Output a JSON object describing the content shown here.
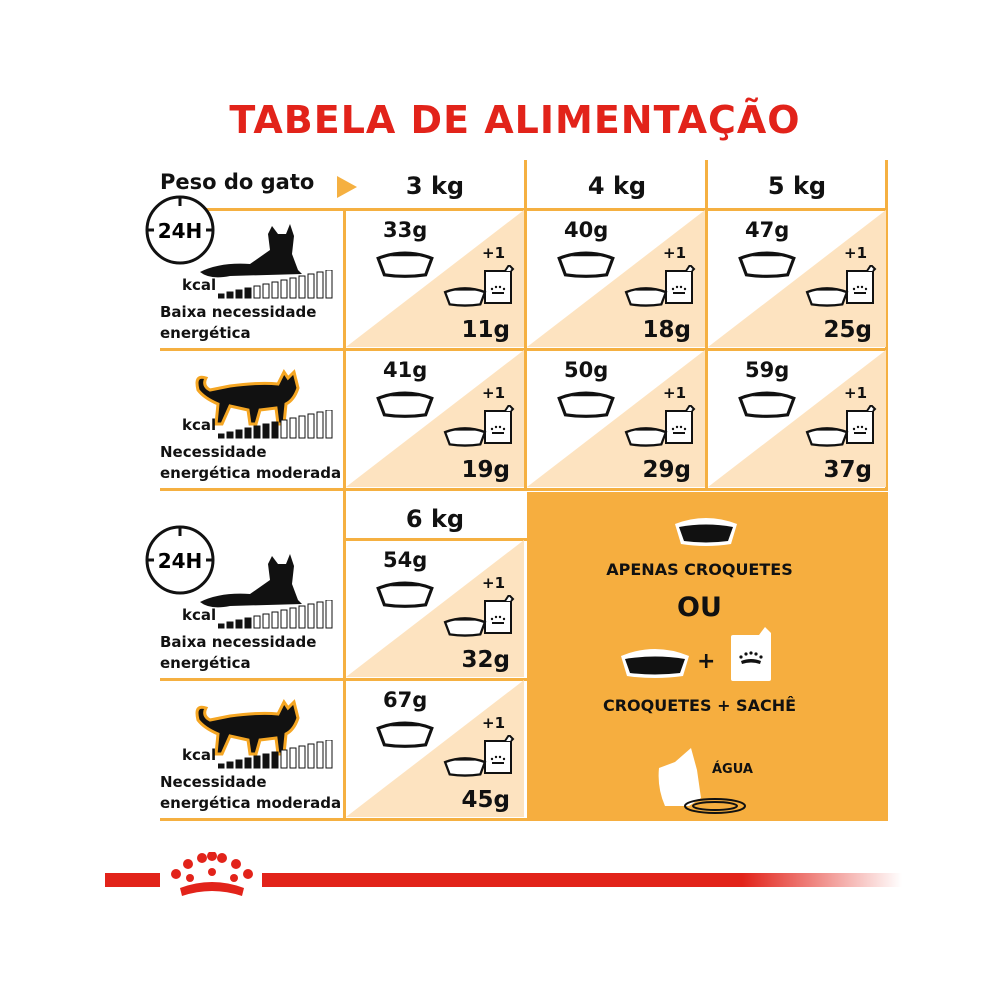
{
  "title": "TABELA DE ALIMENTAÇÃO",
  "header": {
    "label": "Peso do gato",
    "weights": [
      "3 kg",
      "4 kg",
      "5 kg"
    ],
    "weight_6": "6 kg"
  },
  "rows": [
    {
      "clock": "24H",
      "kcal": "kcal",
      "label_line1": "Baixa necessidade",
      "label_line2": "energética",
      "cat": "lying-cat-icon"
    },
    {
      "kcal": "kcal",
      "label_line1": "Necessidade",
      "label_line2": "energética moderada",
      "cat": "walking-cat-icon"
    },
    {
      "clock": "24H",
      "kcal": "kcal",
      "label_line1": "Baixa necessidade",
      "label_line2": "energética",
      "cat": "lying-cat-icon"
    },
    {
      "kcal": "kcal",
      "label_line1": "Necessidade",
      "label_line2": "energética moderada",
      "cat": "walking-cat-icon"
    }
  ],
  "cells": [
    {
      "weight": "3 kg",
      "row": 0,
      "dry_only": "33g",
      "dry_with_pouch": "11g",
      "pouch": "+1"
    },
    {
      "weight": "4 kg",
      "row": 0,
      "dry_only": "40g",
      "dry_with_pouch": "18g",
      "pouch": "+1"
    },
    {
      "weight": "5 kg",
      "row": 0,
      "dry_only": "47g",
      "dry_with_pouch": "25g",
      "pouch": "+1"
    },
    {
      "weight": "3 kg",
      "row": 1,
      "dry_only": "41g",
      "dry_with_pouch": "19g",
      "pouch": "+1"
    },
    {
      "weight": "4 kg",
      "row": 1,
      "dry_only": "50g",
      "dry_with_pouch": "29g",
      "pouch": "+1"
    },
    {
      "weight": "5 kg",
      "row": 1,
      "dry_only": "59g",
      "dry_with_pouch": "37g",
      "pouch": "+1"
    },
    {
      "weight": "6 kg",
      "row": 2,
      "dry_only": "54g",
      "dry_with_pouch": "32g",
      "pouch": "+1"
    },
    {
      "weight": "6 kg",
      "row": 3,
      "dry_only": "67g",
      "dry_with_pouch": "45g",
      "pouch": "+1"
    }
  ],
  "legend": {
    "dry_only": "APENAS CROQUETES",
    "or": "OU",
    "plus": "+",
    "dry_and_pouch": "CROQUETES + SACHÊ",
    "water": "ÁGUA"
  },
  "colors": {
    "brand_red": "#e2231a",
    "orange": "#f6ae3f",
    "grid": "#f5b041",
    "peach": "#fde3c0"
  }
}
